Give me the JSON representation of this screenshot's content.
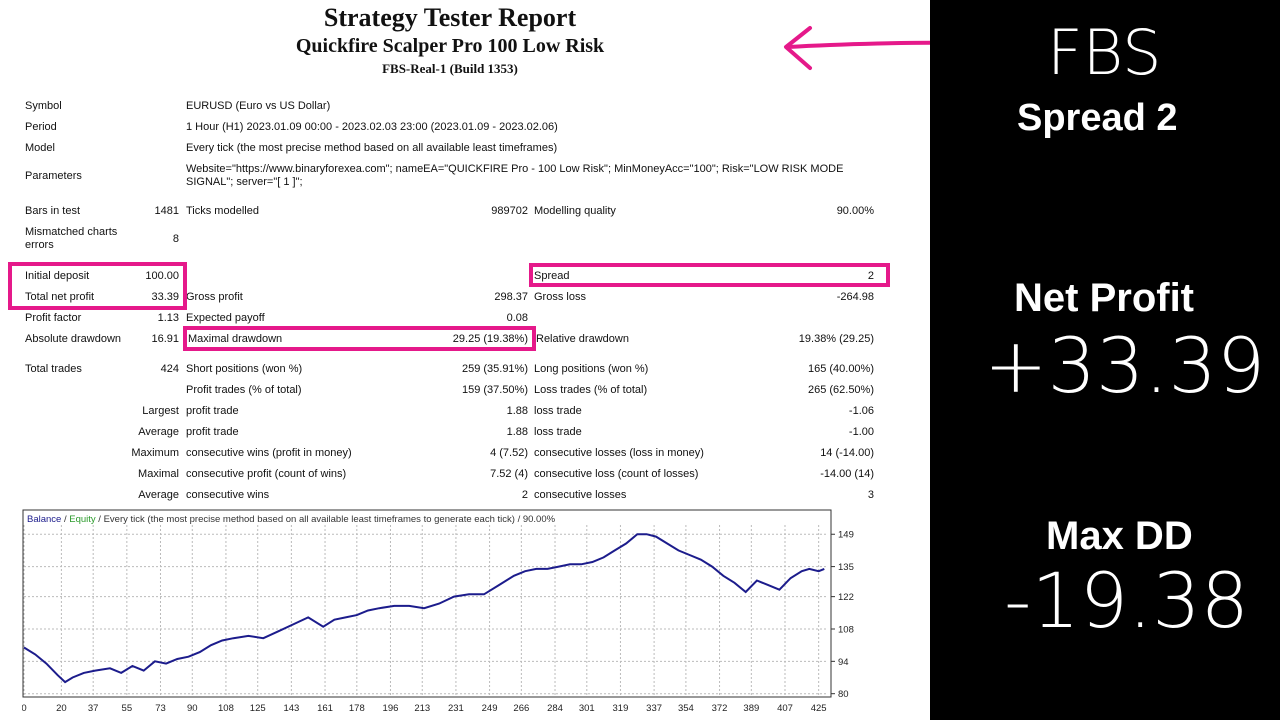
{
  "header": {
    "title": "Strategy Tester Report",
    "expert": "Quickfire Scalper Pro 100 Low Risk",
    "server": "FBS-Real-1 (Build 1353)"
  },
  "info": {
    "symbol_label": "Symbol",
    "symbol": "EURUSD (Euro vs US Dollar)",
    "period_label": "Period",
    "period": "1 Hour (H1) 2023.01.09 00:00 - 2023.02.03 23:00 (2023.01.09 - 2023.02.06)",
    "model_label": "Model",
    "model": "Every tick (the most precise method based on all available least timeframes)",
    "parameters_label": "Parameters",
    "parameters": "Website=\"https://www.binaryforexea.com\"; nameEA=\"QUICKFIRE Pro - 100 Low Risk\"; MinMoneyAcc=\"100\"; Risk=\"LOW RISK MODE SIGNAL\"; server=\"[ 1 ]\";"
  },
  "stats": {
    "bars_label": "Bars in test",
    "bars": "1481",
    "ticks_label": "Ticks modelled",
    "ticks": "989702",
    "quality_label": "Modelling quality",
    "quality": "90.00%",
    "mismatch_label": "Mismatched charts errors",
    "mismatch": "8",
    "deposit_label": "Initial deposit",
    "deposit": "100.00",
    "spread_label": "Spread",
    "spread": "2",
    "net_label": "Total net profit",
    "net": "33.39",
    "gross_profit_label": "Gross profit",
    "gross_profit": "298.37",
    "gross_loss_label": "Gross loss",
    "gross_loss": "-264.98",
    "pf_label": "Profit factor",
    "pf": "1.13",
    "ep_label": "Expected payoff",
    "ep": "0.08",
    "abs_dd_label": "Absolute drawdown",
    "abs_dd": "16.91",
    "max_dd_label": "Maximal drawdown",
    "max_dd": "29.25 (19.38%)",
    "rel_dd_label": "Relative drawdown",
    "rel_dd": "19.38% (29.25)",
    "trades_label": "Total trades",
    "trades": "424",
    "short_label": "Short positions (won %)",
    "short": "259 (35.91%)",
    "long_label": "Long positions (won %)",
    "long": "165 (40.00%)",
    "profit_trades_label": "Profit trades (% of total)",
    "profit_trades": "159 (37.50%)",
    "loss_trades_label": "Loss trades (% of total)",
    "loss_trades": "265 (62.50%)",
    "largest": "Largest",
    "average": "Average",
    "maximum": "Maximum",
    "maximal": "Maximal",
    "profit_trade_label": "profit trade",
    "loss_trade_label": "loss trade",
    "largest_profit": "1.88",
    "largest_loss": "-1.06",
    "average_profit": "1.88",
    "average_loss": "-1.00",
    "cons_wins_money_label": "consecutive wins (profit in money)",
    "cons_wins_money": "4 (7.52)",
    "cons_losses_money_label": "consecutive losses (loss in money)",
    "cons_losses_money": "14 (-14.00)",
    "cons_profit_count_label": "consecutive profit (count of wins)",
    "cons_profit_count": "7.52 (4)",
    "cons_loss_count_label": "consecutive loss (count of losses)",
    "cons_loss_count": "-14.00 (14)",
    "avg_wins_label": "consecutive wins",
    "avg_wins": "2",
    "avg_losses_label": "consecutive losses",
    "avg_losses": "3"
  },
  "chart_legend": {
    "balance": "Balance",
    "sep": " / ",
    "equity": "Equity",
    "rest": " / Every tick (the most precise method based on all available least timeframes to generate each tick) / 90.00%"
  },
  "chart_data": {
    "type": "line",
    "series": [
      {
        "name": "Balance",
        "x": [
          0,
          6,
          12,
          18,
          22,
          26,
          32,
          38,
          46,
          52,
          58,
          64,
          70,
          76,
          82,
          88,
          94,
          100,
          106,
          112,
          120,
          128,
          136,
          144,
          152,
          160,
          166,
          172,
          178,
          184,
          190,
          198,
          206,
          214,
          222,
          230,
          238,
          246,
          254,
          262,
          268,
          274,
          280,
          286,
          292,
          298,
          304,
          310,
          316,
          322,
          328,
          333,
          338,
          344,
          350,
          356,
          362,
          368,
          374,
          380,
          386,
          392,
          398,
          404,
          410,
          416,
          420,
          425,
          428
        ],
        "y": [
          100,
          97,
          93,
          88,
          85,
          87,
          89,
          90,
          91,
          89,
          92,
          90,
          94,
          93,
          95,
          96,
          98,
          101,
          103,
          104,
          105,
          104,
          107,
          110,
          113,
          109,
          112,
          113,
          114,
          116,
          117,
          118,
          118,
          117,
          119,
          122,
          123,
          123,
          127,
          131,
          133,
          134,
          134,
          135,
          136,
          136,
          137,
          139,
          142,
          145,
          149,
          149,
          148,
          145,
          142,
          140,
          138,
          135,
          131,
          128,
          124,
          129,
          127,
          125,
          130,
          133,
          134,
          133,
          134
        ]
      }
    ],
    "x_ticks": [
      "0",
      "20",
      "37",
      "55",
      "73",
      "90",
      "108",
      "125",
      "143",
      "161",
      "178",
      "196",
      "213",
      "231",
      "249",
      "266",
      "284",
      "301",
      "319",
      "337",
      "354",
      "372",
      "389",
      "407",
      "425"
    ],
    "y_ticks": [
      "149",
      "135",
      "122",
      "108",
      "94",
      "80"
    ],
    "xlim": [
      0,
      430
    ],
    "ylim": [
      79,
      153
    ],
    "line_color": "#1c1c8c"
  },
  "sidebar": {
    "broker": "FBS",
    "spread": "Spread 2",
    "net_profit_label": "Net Profit",
    "net_profit_value": "+33.39",
    "max_dd_label": "Max DD",
    "max_dd_value": "-19.38"
  },
  "colors": {
    "highlight": "#e5198a",
    "sidebar_bg": "#000000",
    "balance_line": "#1c1c8c"
  },
  "icons": {
    "arrow": "left-arrow-icon"
  }
}
